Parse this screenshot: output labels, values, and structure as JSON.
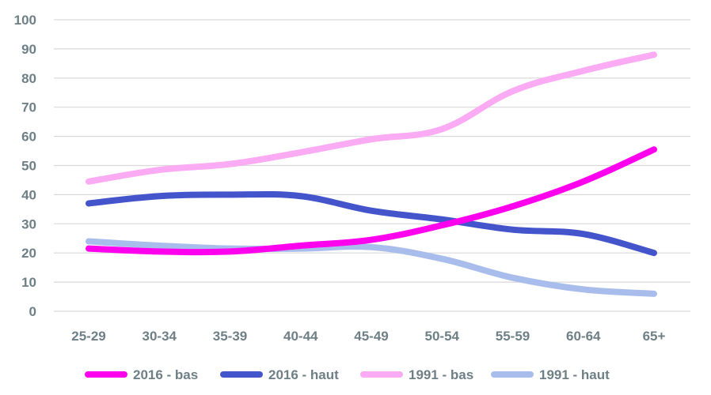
{
  "chart_data": {
    "type": "line",
    "title": "",
    "xlabel": "",
    "ylabel": "",
    "categories": [
      "25-29",
      "30-34",
      "35-39",
      "40-44",
      "45-49",
      "50-54",
      "55-59",
      "60-64",
      "65+"
    ],
    "y_ticks": [
      "0",
      "10",
      "20",
      "30",
      "40",
      "50",
      "60",
      "70",
      "80",
      "90",
      "100"
    ],
    "ylim": [
      0,
      100
    ],
    "grid": true,
    "legend_position": "bottom",
    "series": [
      {
        "name": "2016 - bas",
        "color": "#ff00ee",
        "values": [
          21.5,
          20.5,
          20.5,
          22.5,
          24.5,
          29.5,
          36.0,
          44.5,
          55.5
        ]
      },
      {
        "name": "2016 - haut",
        "color": "#4455cc",
        "values": [
          37.0,
          39.5,
          40.0,
          39.5,
          34.5,
          31.5,
          28.0,
          26.5,
          20.0
        ]
      },
      {
        "name": "1991 - bas",
        "color": "#fbaaf4",
        "values": [
          44.5,
          48.5,
          50.5,
          54.5,
          59.0,
          62.5,
          75.5,
          82.5,
          88.0
        ]
      },
      {
        "name": "1991 - haut",
        "color": "#a9bdec",
        "values": [
          24.0,
          22.5,
          21.5,
          21.5,
          22.0,
          18.0,
          11.5,
          7.5,
          6.0
        ]
      }
    ]
  }
}
